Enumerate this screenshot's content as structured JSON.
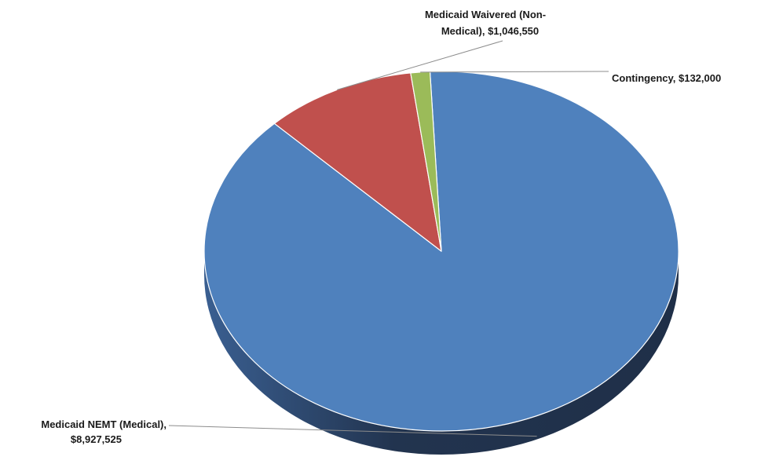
{
  "chart_data": {
    "type": "pie",
    "title": "",
    "slices": [
      {
        "name": "Medicaid NEMT (Medical)",
        "value": 8927525,
        "label_line1": "Medicaid NEMT (Medical),",
        "label_line2": "$8,927,525",
        "color": "#4F81BD"
      },
      {
        "name": "Medicaid Waivered (Non-Medical)",
        "value": 1046550,
        "label_line1": "Medicaid Waivered (Non-",
        "label_line2": "Medical),  $1,046,550",
        "color": "#C0504D"
      },
      {
        "name": "Contingency",
        "value": 132000,
        "label_line1": "Contingency,  $132,000",
        "label_line2": "",
        "color": "#9BBB59"
      }
    ],
    "style": "3d",
    "legend": "none"
  }
}
